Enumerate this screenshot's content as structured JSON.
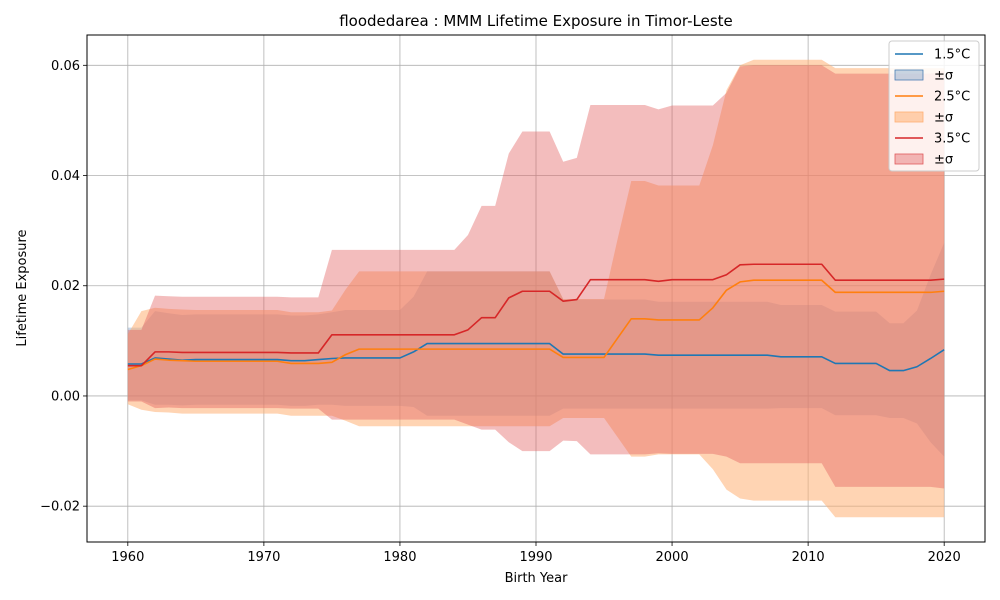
{
  "chart_data": {
    "type": "line",
    "title": "floodedarea : MMM Lifetime Exposure in Timor-Leste",
    "xlabel": "Birth Year",
    "ylabel": "Lifetime Exposure",
    "xlim": [
      1957,
      2023
    ],
    "ylim": [
      -0.0265,
      0.0655
    ],
    "xticks": [
      1960,
      1970,
      1980,
      1990,
      2000,
      2010,
      2020
    ],
    "yticks": [
      -0.02,
      0.0,
      0.02,
      0.04,
      0.06
    ],
    "ytick_labels": [
      "−0.02",
      "0.00",
      "0.02",
      "0.04",
      "0.06"
    ],
    "grid": true,
    "legend_position": "upper right",
    "x": [
      1960,
      1961,
      1962,
      1963,
      1964,
      1965,
      1966,
      1967,
      1968,
      1969,
      1970,
      1971,
      1972,
      1973,
      1974,
      1975,
      1976,
      1977,
      1978,
      1979,
      1980,
      1981,
      1982,
      1983,
      1984,
      1985,
      1986,
      1987,
      1988,
      1989,
      1990,
      1991,
      1992,
      1993,
      1994,
      1995,
      1996,
      1997,
      1998,
      1999,
      2000,
      2001,
      2002,
      2003,
      2004,
      2005,
      2006,
      2007,
      2008,
      2009,
      2010,
      2011,
      2012,
      2013,
      2014,
      2015,
      2016,
      2017,
      2018,
      2019,
      2020
    ],
    "series": [
      {
        "name": "1.5°C",
        "band_label": "±σ",
        "color": "#1f77b4",
        "band_color": "#4a7eb5",
        "band_opacity": 0.3,
        "mean": [
          0.0058,
          0.0058,
          0.0069,
          0.0067,
          0.0065,
          0.0066,
          0.0066,
          0.0066,
          0.0066,
          0.0066,
          0.0066,
          0.0066,
          0.0064,
          0.0064,
          0.0066,
          0.0068,
          0.0069,
          0.0069,
          0.0069,
          0.0069,
          0.0069,
          0.008,
          0.0095,
          0.0095,
          0.0095,
          0.0095,
          0.0095,
          0.0095,
          0.0095,
          0.0095,
          0.0095,
          0.0095,
          0.0076,
          0.0076,
          0.0076,
          0.0076,
          0.0076,
          0.0076,
          0.0076,
          0.0074,
          0.0074,
          0.0074,
          0.0074,
          0.0074,
          0.0074,
          0.0074,
          0.0074,
          0.0074,
          0.0071,
          0.0071,
          0.0071,
          0.0071,
          0.0059,
          0.0059,
          0.0059,
          0.0059,
          0.0046,
          0.0046,
          0.0053,
          0.0068,
          0.0084
        ],
        "upper": [
          0.0124,
          0.0124,
          0.0154,
          0.015,
          0.0147,
          0.0148,
          0.0148,
          0.0148,
          0.0148,
          0.0148,
          0.0148,
          0.0148,
          0.0146,
          0.0146,
          0.0148,
          0.0152,
          0.0156,
          0.0156,
          0.0156,
          0.0156,
          0.0156,
          0.018,
          0.0226,
          0.0226,
          0.0226,
          0.0226,
          0.0226,
          0.0226,
          0.0226,
          0.0226,
          0.0226,
          0.0226,
          0.0175,
          0.0175,
          0.0175,
          0.0175,
          0.0175,
          0.0175,
          0.0175,
          0.0171,
          0.0171,
          0.0171,
          0.0171,
          0.0171,
          0.0171,
          0.0171,
          0.0171,
          0.0171,
          0.0165,
          0.0165,
          0.0165,
          0.0165,
          0.0153,
          0.0153,
          0.0153,
          0.0153,
          0.0132,
          0.0132,
          0.0155,
          0.022,
          0.0278
        ],
        "lower": [
          -0.0008,
          -0.0008,
          -0.0016,
          -0.0016,
          -0.0017,
          -0.0016,
          -0.0016,
          -0.0016,
          -0.0016,
          -0.0016,
          -0.0016,
          -0.0016,
          -0.0018,
          -0.0018,
          -0.0016,
          -0.0016,
          -0.0018,
          -0.0018,
          -0.0018,
          -0.0018,
          -0.0018,
          -0.002,
          -0.0036,
          -0.0036,
          -0.0036,
          -0.0036,
          -0.0036,
          -0.0036,
          -0.0036,
          -0.0036,
          -0.0036,
          -0.0036,
          -0.0023,
          -0.0023,
          -0.0023,
          -0.0023,
          -0.0023,
          -0.0023,
          -0.0023,
          -0.0023,
          -0.0023,
          -0.0023,
          -0.0023,
          -0.0023,
          -0.0023,
          -0.0023,
          -0.0023,
          -0.0023,
          -0.0022,
          -0.0022,
          -0.0022,
          -0.0022,
          -0.0035,
          -0.0035,
          -0.0035,
          -0.0035,
          -0.004,
          -0.004,
          -0.005,
          -0.0084,
          -0.011
        ]
      },
      {
        "name": "2.5°C",
        "band_label": "±σ",
        "color": "#ff7f0e",
        "band_color": "#ffb074",
        "band_opacity": 0.55,
        "mean": [
          0.0048,
          0.0055,
          0.0067,
          0.0065,
          0.0064,
          0.0063,
          0.0063,
          0.0063,
          0.0063,
          0.0063,
          0.0063,
          0.0063,
          0.0059,
          0.0059,
          0.0059,
          0.0061,
          0.0075,
          0.0085,
          0.0085,
          0.0085,
          0.0085,
          0.0085,
          0.0085,
          0.0085,
          0.0085,
          0.0085,
          0.0085,
          0.0085,
          0.0085,
          0.0085,
          0.0085,
          0.0085,
          0.007,
          0.007,
          0.007,
          0.007,
          0.0105,
          0.014,
          0.014,
          0.0138,
          0.0138,
          0.0138,
          0.0138,
          0.016,
          0.0192,
          0.0207,
          0.021,
          0.021,
          0.021,
          0.021,
          0.021,
          0.021,
          0.0188,
          0.0188,
          0.0188,
          0.0188,
          0.0188,
          0.0188,
          0.0188,
          0.0188,
          0.019
        ],
        "upper": [
          0.0112,
          0.0154,
          0.016,
          0.0158,
          0.0157,
          0.0156,
          0.0156,
          0.0156,
          0.0156,
          0.0156,
          0.0156,
          0.0156,
          0.0152,
          0.0152,
          0.0152,
          0.0155,
          0.0193,
          0.0226,
          0.0226,
          0.0226,
          0.0226,
          0.0226,
          0.0226,
          0.0226,
          0.0226,
          0.0226,
          0.0226,
          0.0226,
          0.0226,
          0.0226,
          0.0226,
          0.0226,
          0.0176,
          0.0176,
          0.0176,
          0.0176,
          0.0285,
          0.039,
          0.039,
          0.0382,
          0.0382,
          0.0382,
          0.0382,
          0.0455,
          0.0555,
          0.06,
          0.061,
          0.061,
          0.061,
          0.061,
          0.061,
          0.061,
          0.0595,
          0.0595,
          0.0595,
          0.0595,
          0.0595,
          0.0595,
          0.0595,
          0.0595,
          0.0595
        ],
        "lower": [
          -0.0015,
          -0.0025,
          -0.0029,
          -0.003,
          -0.0032,
          -0.0032,
          -0.0032,
          -0.0032,
          -0.0032,
          -0.0032,
          -0.0032,
          -0.0032,
          -0.0036,
          -0.0036,
          -0.0036,
          -0.0036,
          -0.0045,
          -0.0055,
          -0.0055,
          -0.0055,
          -0.0055,
          -0.0055,
          -0.0055,
          -0.0055,
          -0.0055,
          -0.0055,
          -0.0055,
          -0.0055,
          -0.0055,
          -0.0055,
          -0.0055,
          -0.0055,
          -0.004,
          -0.004,
          -0.004,
          -0.004,
          -0.0075,
          -0.011,
          -0.011,
          -0.0106,
          -0.0106,
          -0.0106,
          -0.0106,
          -0.0133,
          -0.017,
          -0.0186,
          -0.019,
          -0.019,
          -0.019,
          -0.019,
          -0.019,
          -0.019,
          -0.022,
          -0.022,
          -0.022,
          -0.022,
          -0.022,
          -0.022,
          -0.022,
          -0.022,
          -0.022
        ]
      },
      {
        "name": "3.5°C",
        "band_label": "±σ",
        "color": "#d62728",
        "band_color": "#e05a5b",
        "band_opacity": 0.4,
        "mean": [
          0.0055,
          0.0055,
          0.008,
          0.008,
          0.0079,
          0.0079,
          0.0079,
          0.0079,
          0.0079,
          0.0079,
          0.0079,
          0.0079,
          0.0078,
          0.0078,
          0.0078,
          0.0111,
          0.0111,
          0.0111,
          0.0111,
          0.0111,
          0.0111,
          0.0111,
          0.0111,
          0.0111,
          0.0111,
          0.012,
          0.0142,
          0.0142,
          0.0178,
          0.019,
          0.019,
          0.019,
          0.0172,
          0.0175,
          0.0211,
          0.0211,
          0.0211,
          0.0211,
          0.0211,
          0.0208,
          0.0211,
          0.0211,
          0.0211,
          0.0211,
          0.022,
          0.0238,
          0.0239,
          0.0239,
          0.0239,
          0.0239,
          0.0239,
          0.0239,
          0.021,
          0.021,
          0.021,
          0.021,
          0.021,
          0.021,
          0.021,
          0.021,
          0.0212
        ],
        "upper": [
          0.012,
          0.012,
          0.0182,
          0.0181,
          0.018,
          0.018,
          0.018,
          0.018,
          0.018,
          0.018,
          0.018,
          0.018,
          0.0179,
          0.0179,
          0.0179,
          0.0265,
          0.0265,
          0.0265,
          0.0265,
          0.0265,
          0.0265,
          0.0265,
          0.0265,
          0.0265,
          0.0265,
          0.0292,
          0.0345,
          0.0345,
          0.044,
          0.048,
          0.048,
          0.048,
          0.0425,
          0.0432,
          0.0528,
          0.0528,
          0.0528,
          0.0528,
          0.0528,
          0.052,
          0.0527,
          0.0527,
          0.0527,
          0.0527,
          0.055,
          0.0598,
          0.06,
          0.06,
          0.06,
          0.06,
          0.06,
          0.06,
          0.0585,
          0.0585,
          0.0585,
          0.0585,
          0.0585,
          0.0585,
          0.0585,
          0.0585,
          0.059
        ],
        "lower": [
          -0.001,
          -0.001,
          -0.0022,
          -0.0021,
          -0.0022,
          -0.0022,
          -0.0022,
          -0.0022,
          -0.0022,
          -0.0022,
          -0.0022,
          -0.0022,
          -0.0023,
          -0.0023,
          -0.0023,
          -0.0043,
          -0.0043,
          -0.0043,
          -0.0043,
          -0.0043,
          -0.0043,
          -0.0043,
          -0.0043,
          -0.0043,
          -0.0043,
          -0.0052,
          -0.0061,
          -0.0061,
          -0.0084,
          -0.01,
          -0.01,
          -0.01,
          -0.0081,
          -0.0082,
          -0.0106,
          -0.0106,
          -0.0106,
          -0.0106,
          -0.0106,
          -0.0104,
          -0.0105,
          -0.0105,
          -0.0105,
          -0.0105,
          -0.011,
          -0.0122,
          -0.0122,
          -0.0122,
          -0.0122,
          -0.0122,
          -0.0122,
          -0.0122,
          -0.0165,
          -0.0165,
          -0.0165,
          -0.0165,
          -0.0165,
          -0.0165,
          -0.0165,
          -0.0165,
          -0.0168
        ]
      }
    ]
  }
}
